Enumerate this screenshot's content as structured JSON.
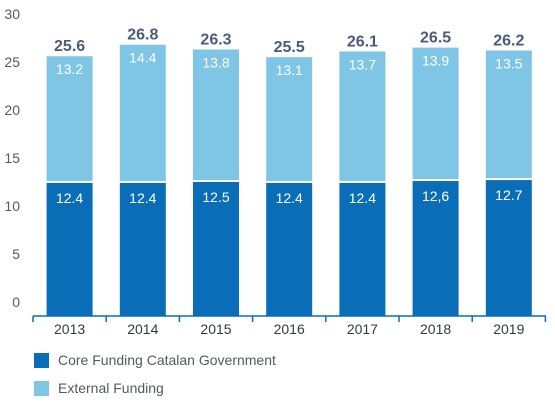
{
  "chart_data": {
    "type": "bar",
    "stacked": true,
    "categories": [
      "2013",
      "2014",
      "2015",
      "2016",
      "2017",
      "2018",
      "2019"
    ],
    "series": [
      {
        "name": "Core Funding Catalan Government",
        "color": "#0a6db8",
        "values": [
          12.4,
          12.4,
          12.5,
          12.4,
          12.4,
          12.6,
          12.7
        ],
        "labels": [
          "12.4",
          "12.4",
          "12.5",
          "12.4",
          "12.4",
          "12,6",
          "12.7"
        ]
      },
      {
        "name": "External Funding",
        "color": "#7fc5e6",
        "values": [
          13.2,
          14.4,
          13.8,
          13.1,
          13.7,
          13.9,
          13.5
        ],
        "labels": [
          "13.2",
          "14.4",
          "13.8",
          "13.1",
          "13.7",
          "13.9",
          "13.5"
        ]
      }
    ],
    "totals": [
      "25.6",
      "26.8",
      "26.3",
      "25.5",
      "26.1",
      "26.5",
      "26.2"
    ],
    "yticks": [
      "0",
      "5",
      "10",
      "15",
      "20",
      "25",
      "30"
    ],
    "ylim": [
      0,
      30
    ],
    "grid": false,
    "legend_position": "bottom-left",
    "colors": {
      "tick_text": "#555a60",
      "total_text": "#4a5c7a",
      "axis": "#0a6db8"
    }
  }
}
